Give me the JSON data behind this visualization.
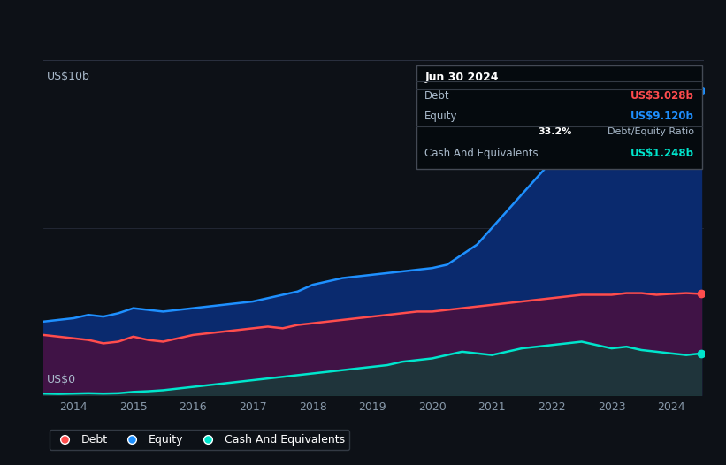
{
  "bg_color": "#0d1117",
  "plot_bg_color": "#0d1117",
  "ylabel_top": "US$10b",
  "ylabel_bottom": "US$0",
  "x_ticks": [
    "2014",
    "2015",
    "2016",
    "2017",
    "2018",
    "2019",
    "2020",
    "2021",
    "2022",
    "2023",
    "2024"
  ],
  "tooltip": {
    "date": "Jun 30 2024",
    "debt_label": "Debt",
    "debt_value": "US$3.028b",
    "equity_label": "Equity",
    "equity_value": "US$9.120b",
    "ratio": "33.2%",
    "ratio_label": "Debt/Equity Ratio",
    "cash_label": "Cash And Equivalents",
    "cash_value": "US$1.248b"
  },
  "legend": [
    {
      "label": "Debt",
      "color": "#ff4d4d"
    },
    {
      "label": "Equity",
      "color": "#1e90ff"
    },
    {
      "label": "Cash And Equivalents",
      "color": "#00e5cc"
    }
  ],
  "debt_color": "#ff4d4d",
  "equity_color": "#1e90ff",
  "cash_color": "#00e5cc",
  "equity_fill_color": "#0a2a6e",
  "debt_fill_color": "#4a1040",
  "cash_fill_color": "#1a3a3a",
  "grid_color": "#2a3040",
  "ylim": [
    0,
    10
  ],
  "t": [
    2013.5,
    2013.75,
    2014.0,
    2014.25,
    2014.5,
    2014.75,
    2015.0,
    2015.25,
    2015.5,
    2015.75,
    2016.0,
    2016.25,
    2016.5,
    2016.75,
    2017.0,
    2017.25,
    2017.5,
    2017.75,
    2018.0,
    2018.25,
    2018.5,
    2018.75,
    2019.0,
    2019.25,
    2019.5,
    2019.75,
    2020.0,
    2020.25,
    2020.5,
    2020.75,
    2021.0,
    2021.25,
    2021.5,
    2021.75,
    2022.0,
    2022.25,
    2022.5,
    2022.75,
    2023.0,
    2023.25,
    2023.5,
    2023.75,
    2024.0,
    2024.25,
    2024.5
  ],
  "equity": [
    2.2,
    2.25,
    2.3,
    2.4,
    2.35,
    2.45,
    2.6,
    2.55,
    2.5,
    2.55,
    2.6,
    2.65,
    2.7,
    2.75,
    2.8,
    2.9,
    3.0,
    3.1,
    3.3,
    3.4,
    3.5,
    3.55,
    3.6,
    3.65,
    3.7,
    3.75,
    3.8,
    3.9,
    4.2,
    4.5,
    5.0,
    5.5,
    6.0,
    6.5,
    7.0,
    7.3,
    7.6,
    7.8,
    8.0,
    8.3,
    8.6,
    8.9,
    9.12,
    9.2,
    9.12
  ],
  "debt": [
    1.8,
    1.75,
    1.7,
    1.65,
    1.55,
    1.6,
    1.75,
    1.65,
    1.6,
    1.7,
    1.8,
    1.85,
    1.9,
    1.95,
    2.0,
    2.05,
    2.0,
    2.1,
    2.15,
    2.2,
    2.25,
    2.3,
    2.35,
    2.4,
    2.45,
    2.5,
    2.5,
    2.55,
    2.6,
    2.65,
    2.7,
    2.75,
    2.8,
    2.85,
    2.9,
    2.95,
    3.0,
    3.0,
    3.0,
    3.05,
    3.05,
    3.0,
    3.028,
    3.05,
    3.028
  ],
  "cash": [
    0.05,
    0.04,
    0.05,
    0.06,
    0.05,
    0.06,
    0.1,
    0.12,
    0.15,
    0.2,
    0.25,
    0.3,
    0.35,
    0.4,
    0.45,
    0.5,
    0.55,
    0.6,
    0.65,
    0.7,
    0.75,
    0.8,
    0.85,
    0.9,
    1.0,
    1.05,
    1.1,
    1.2,
    1.3,
    1.25,
    1.2,
    1.3,
    1.4,
    1.45,
    1.5,
    1.55,
    1.6,
    1.5,
    1.4,
    1.45,
    1.35,
    1.3,
    1.248,
    1.2,
    1.248
  ]
}
